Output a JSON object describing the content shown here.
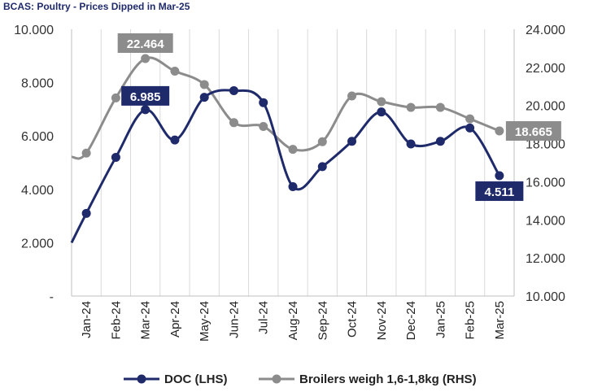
{
  "title": "BCAS: Poultry - Prices Dipped in Mar-25",
  "colors": {
    "doc": "#1f2a6b",
    "broilers": "#8c8c8c",
    "grid": "#d9d9d9",
    "axis": "#bfbfbf"
  },
  "chart_data": {
    "type": "line",
    "categories": [
      "Jan-24",
      "Feb-24",
      "Mar-24",
      "Apr-24",
      "May-24",
      "Jun-24",
      "Jul-24",
      "Aug-24",
      "Sep-24",
      "Oct-24",
      "Nov-24",
      "Dec-24",
      "Jan-25",
      "Feb-25",
      "Mar-25"
    ],
    "left_axis": {
      "min": 0,
      "max": 10000,
      "ticks": [
        "-",
        "2.000",
        "4.000",
        "6.000",
        "8.000",
        "10.000"
      ]
    },
    "right_axis": {
      "min": 10000,
      "max": 24000,
      "ticks": [
        "10.000",
        "12.000",
        "14.000",
        "16.000",
        "18.000",
        "20.000",
        "22.000",
        "24.000"
      ]
    },
    "grid": "vertical",
    "legend_position": "bottom",
    "series": [
      {
        "name": "DOC (LHS)",
        "axis": "left",
        "start_value": 2000,
        "values": [
          3100,
          5200,
          6985,
          5850,
          7450,
          7700,
          7250,
          4100,
          4850,
          5800,
          6900,
          5700,
          5800,
          6300,
          4511
        ]
      },
      {
        "name": "Broilers weigh 1,6-1,8kg (RHS)",
        "axis": "right",
        "start_value": 17300,
        "values": [
          17500,
          20400,
          22464,
          21800,
          21100,
          19100,
          18900,
          17700,
          18100,
          20500,
          20200,
          19900,
          19900,
          19300,
          18665
        ]
      }
    ],
    "callouts": [
      {
        "series": 1,
        "index": 2,
        "label": "22.464"
      },
      {
        "series": 0,
        "index": 2,
        "label": "6.985"
      },
      {
        "series": 1,
        "index": 14,
        "label": "18.665"
      },
      {
        "series": 0,
        "index": 14,
        "label": "4.511"
      }
    ]
  }
}
